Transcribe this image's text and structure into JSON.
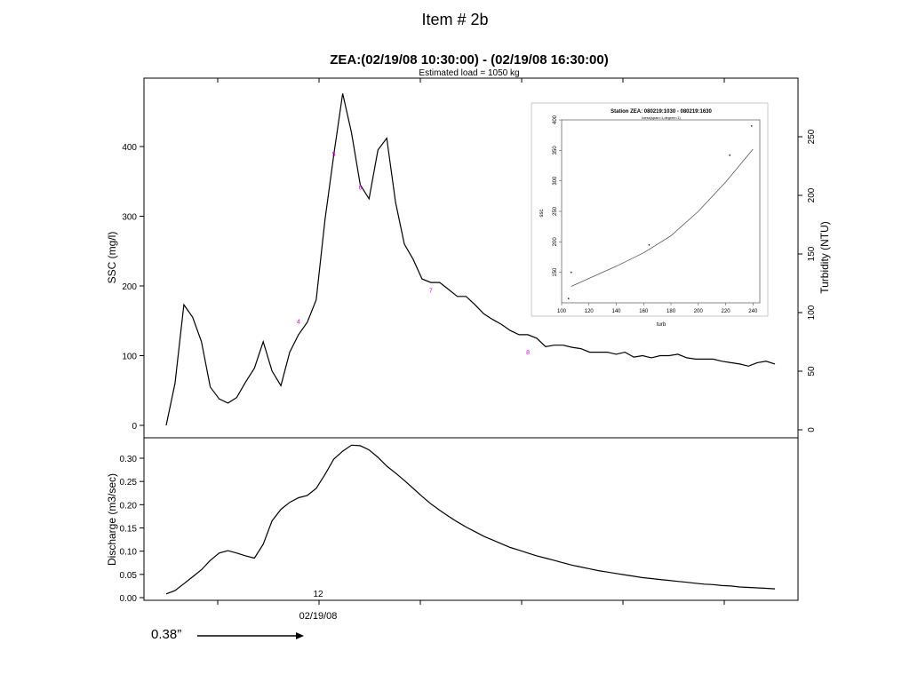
{
  "slide": {
    "title": "Item # 2b",
    "annotation": "0.38”"
  },
  "chart_data": [
    {
      "type": "line",
      "title": "ZEA:(02/19/08 10:30:00) - (02/19/08 16:30:00)",
      "subtitle": "Estimated load = 1050 kg",
      "ylabel": "SSC (mg/l)",
      "ylabel_right": "Turbidity (NTU)",
      "ylim": [
        0,
        480
      ],
      "yticks": [
        0,
        100,
        200,
        300,
        400
      ],
      "yticks_right": [
        0,
        50,
        100,
        150,
        200,
        250
      ],
      "ylim_right": [
        0,
        280
      ],
      "series": [
        {
          "values": [
            0,
            60,
            173,
            155,
            120,
            55,
            38,
            32,
            40,
            62,
            82,
            120,
            78,
            57,
            105,
            130,
            148,
            180,
            295,
            388,
            476,
            420,
            345,
            325,
            395,
            412,
            320,
            260,
            238,
            210,
            205,
            205,
            195,
            185,
            185,
            173,
            160,
            152,
            145,
            136,
            130,
            130,
            125,
            113,
            115,
            115,
            112,
            110,
            105,
            105,
            105,
            102,
            105,
            98,
            100,
            97,
            100,
            100,
            102,
            97,
            95,
            95,
            95,
            92,
            90,
            88,
            85,
            90,
            92,
            88
          ]
        }
      ],
      "samples": [
        {
          "label": "4",
          "index": 15,
          "value": 150
        },
        {
          "label": "5",
          "index": 19,
          "value": 390
        },
        {
          "label": "6",
          "index": 22,
          "value": 342
        },
        {
          "label": "7",
          "index": 30,
          "value": 194
        },
        {
          "label": "8",
          "index": 41,
          "value": 106
        }
      ]
    },
    {
      "type": "line",
      "ylabel": "Discharge (m3/sec)",
      "ylim": [
        0,
        0.33
      ],
      "yticks": [
        "0.00",
        "0.05",
        "0.10",
        "0.15",
        "0.20",
        "0.25",
        "0.30"
      ],
      "x_label": "02/19/08",
      "x_hour_label": "12",
      "series": [
        {
          "values": [
            0.008,
            0.015,
            0.03,
            0.045,
            0.06,
            0.08,
            0.096,
            0.101,
            0.096,
            0.09,
            0.085,
            0.115,
            0.165,
            0.19,
            0.205,
            0.215,
            0.22,
            0.235,
            0.265,
            0.298,
            0.315,
            0.328,
            0.327,
            0.318,
            0.302,
            0.283,
            0.268,
            0.252,
            0.235,
            0.218,
            0.202,
            0.188,
            0.175,
            0.163,
            0.152,
            0.142,
            0.132,
            0.124,
            0.116,
            0.108,
            0.102,
            0.096,
            0.09,
            0.085,
            0.08,
            0.075,
            0.07,
            0.066,
            0.062,
            0.058,
            0.055,
            0.052,
            0.049,
            0.046,
            0.043,
            0.041,
            0.039,
            0.037,
            0.035,
            0.033,
            0.031,
            0.029,
            0.028,
            0.026,
            0.025,
            0.023,
            0.022,
            0.021,
            0.02,
            0.019
          ]
        }
      ]
    },
    {
      "type": "scatter",
      "title": "Station ZEA: 080219:1030 - 080219:1630",
      "subtitle": "loess(span=1,degree=1)",
      "xlabel": "turb",
      "ylabel": "ssc",
      "xlim": [
        100,
        245
      ],
      "ylim": [
        100,
        400
      ],
      "xticks": [
        100,
        120,
        140,
        160,
        180,
        200,
        220,
        240
      ],
      "yticks": [
        150,
        200,
        250,
        300,
        350,
        400
      ],
      "points": [
        [
          105,
          107
        ],
        [
          107,
          150
        ],
        [
          164,
          195
        ],
        [
          223,
          342
        ],
        [
          239,
          390
        ]
      ],
      "fit": [
        [
          107,
          127
        ],
        [
          120,
          140
        ],
        [
          140,
          160
        ],
        [
          160,
          182
        ],
        [
          180,
          210
        ],
        [
          200,
          250
        ],
        [
          220,
          298
        ],
        [
          240,
          352
        ]
      ]
    }
  ]
}
